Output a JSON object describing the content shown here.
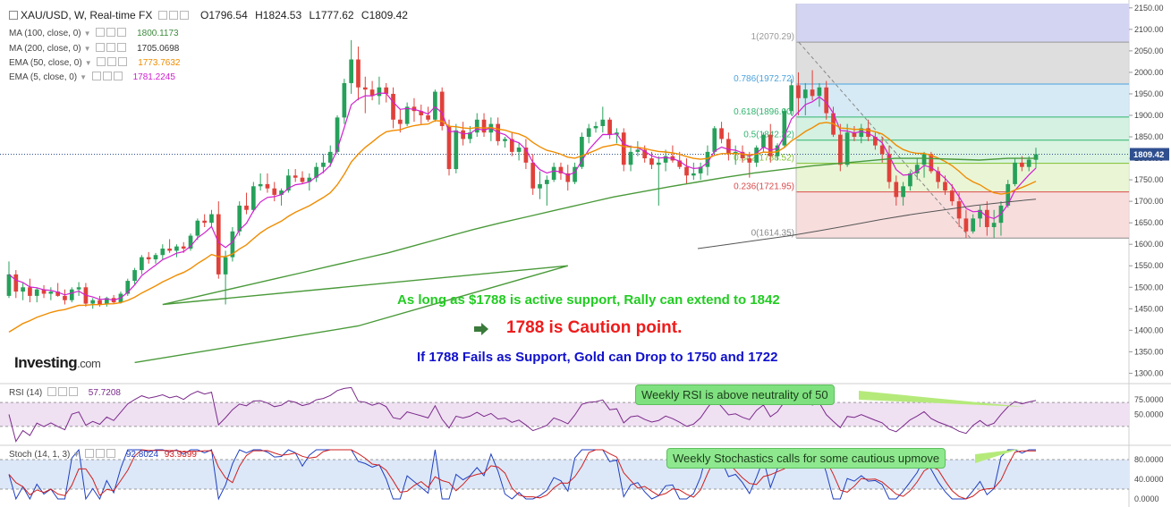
{
  "header": {
    "symbol": "XAU/USD, W, Real-time FX",
    "open": "O1796.54",
    "high": "H1824.53",
    "low": "L1777.62",
    "close": "C1809.42"
  },
  "indicators": [
    {
      "name": "MA (100, close, 0)",
      "value": "1800.1173",
      "color": "#3c8a3c"
    },
    {
      "name": "MA (200, close, 0)",
      "value": "1705.0698",
      "color": "#333333"
    },
    {
      "name": "EMA (50, close, 0)",
      "value": "1773.7632",
      "color": "#f08c00"
    },
    {
      "name": "EMA (5, close, 0)",
      "value": "1781.2245",
      "color": "#d020d0"
    }
  ],
  "rsi_legend": {
    "name": "RSI (14)",
    "value": "57.7208",
    "color": "#7a2a8a"
  },
  "stoch_legend": {
    "name": "Stoch (14, 1, 3)",
    "value_k": "92.8024",
    "value_d": "93.9399",
    "color_k": "#1f3fbf",
    "color_d": "#d02020"
  },
  "brand": {
    "name": "Investing",
    "suffix": ".com"
  },
  "annotations": {
    "line1": "As long as $1788 is active support, Rally can extend to 1842",
    "line2": "1788 is Caution point.",
    "line3": "If 1788 Fails as Support, Gold can Drop to 1750 and 1722",
    "callout_rsi": "Weekly RSI is above neutrality of 50",
    "callout_stoch": "Weekly Stochastics calls for some cautious upmove"
  },
  "colors": {
    "up_candle": "#26a05a",
    "down_candle": "#e0413a",
    "price_tag_bg": "#2f4f8f",
    "rsi_band": "#efe0f2",
    "stoch_band": "#dce8f8"
  },
  "chart_data": {
    "type": "candlestick",
    "title": "XAU/USD, W, Real-time FX",
    "price_axis": {
      "ticks": [
        2150,
        2100,
        2050,
        2000,
        1950,
        1900,
        1850,
        1800,
        1750,
        1700,
        1650,
        1600,
        1550,
        1500,
        1450,
        1400,
        1350,
        1300
      ],
      "tick_labels": [
        "2150.00",
        "2100.00",
        "2050.00",
        "2000.00",
        "1950.00",
        "1900.00",
        "1850.00",
        "1800.00",
        "1750.00",
        "1700.00",
        "1650.00",
        "1600.00",
        "1550.00",
        "1500.00",
        "1450.00",
        "1400.00",
        "1350.00",
        "1300.00"
      ],
      "range": [
        1278,
        2160
      ],
      "last_price_label": "1809.42",
      "last_price": 1809.42
    },
    "fibonacci": {
      "levels": [
        {
          "ratio": "1",
          "price": 2070.29,
          "label": "1(2070.29)",
          "color": "#d8d8d8"
        },
        {
          "ratio": "0.786",
          "price": 1972.72,
          "label": "0.786(1972.72)",
          "color": "#cfe6f3"
        },
        {
          "ratio": "0.618",
          "price": 1896.0,
          "label": "0.618(1896.00)",
          "color": "#cdeedd"
        },
        {
          "ratio": "0.5",
          "price": 1842.32,
          "label": "0.5(1842.32)",
          "color": "#d4f2dc"
        },
        {
          "ratio": "0.382",
          "price": 1788.52,
          "label": "0.382(1788.52)",
          "color": "#e6f3cf"
        },
        {
          "ratio": "0.236",
          "price": 1721.95,
          "label": "0.236(1721.95)",
          "color": "#f7d7d7"
        },
        {
          "ratio": "0",
          "price": 1614.35,
          "label": "0(1614.35)",
          "color": "#999999"
        }
      ],
      "top_band_color": "#d3d3f2"
    },
    "candles": [
      {
        "o": 1480,
        "h": 1560,
        "l": 1475,
        "c": 1530
      },
      {
        "o": 1530,
        "h": 1540,
        "l": 1475,
        "c": 1490
      },
      {
        "o": 1490,
        "h": 1510,
        "l": 1470,
        "c": 1500
      },
      {
        "o": 1500,
        "h": 1520,
        "l": 1465,
        "c": 1480
      },
      {
        "o": 1480,
        "h": 1500,
        "l": 1465,
        "c": 1495
      },
      {
        "o": 1495,
        "h": 1505,
        "l": 1475,
        "c": 1485
      },
      {
        "o": 1485,
        "h": 1500,
        "l": 1470,
        "c": 1490
      },
      {
        "o": 1490,
        "h": 1510,
        "l": 1478,
        "c": 1480
      },
      {
        "o": 1480,
        "h": 1495,
        "l": 1460,
        "c": 1470
      },
      {
        "o": 1470,
        "h": 1500,
        "l": 1465,
        "c": 1495
      },
      {
        "o": 1495,
        "h": 1512,
        "l": 1480,
        "c": 1500
      },
      {
        "o": 1500,
        "h": 1510,
        "l": 1455,
        "c": 1462
      },
      {
        "o": 1462,
        "h": 1475,
        "l": 1450,
        "c": 1470
      },
      {
        "o": 1470,
        "h": 1480,
        "l": 1455,
        "c": 1460
      },
      {
        "o": 1460,
        "h": 1478,
        "l": 1455,
        "c": 1475
      },
      {
        "o": 1475,
        "h": 1482,
        "l": 1462,
        "c": 1465
      },
      {
        "o": 1465,
        "h": 1490,
        "l": 1462,
        "c": 1485
      },
      {
        "o": 1485,
        "h": 1520,
        "l": 1480,
        "c": 1515
      },
      {
        "o": 1515,
        "h": 1545,
        "l": 1505,
        "c": 1540
      },
      {
        "o": 1540,
        "h": 1575,
        "l": 1530,
        "c": 1570
      },
      {
        "o": 1570,
        "h": 1582,
        "l": 1555,
        "c": 1565
      },
      {
        "o": 1565,
        "h": 1580,
        "l": 1555,
        "c": 1575
      },
      {
        "o": 1575,
        "h": 1600,
        "l": 1565,
        "c": 1590
      },
      {
        "o": 1590,
        "h": 1612,
        "l": 1580,
        "c": 1585
      },
      {
        "o": 1585,
        "h": 1600,
        "l": 1570,
        "c": 1595
      },
      {
        "o": 1595,
        "h": 1605,
        "l": 1580,
        "c": 1590
      },
      {
        "o": 1590,
        "h": 1625,
        "l": 1585,
        "c": 1620
      },
      {
        "o": 1620,
        "h": 1660,
        "l": 1610,
        "c": 1655
      },
      {
        "o": 1655,
        "h": 1670,
        "l": 1640,
        "c": 1650
      },
      {
        "o": 1650,
        "h": 1680,
        "l": 1640,
        "c": 1670
      },
      {
        "o": 1670,
        "h": 1700,
        "l": 1520,
        "c": 1530
      },
      {
        "o": 1530,
        "h": 1585,
        "l": 1460,
        "c": 1570
      },
      {
        "o": 1570,
        "h": 1640,
        "l": 1560,
        "c": 1630
      },
      {
        "o": 1630,
        "h": 1700,
        "l": 1620,
        "c": 1690
      },
      {
        "o": 1690,
        "h": 1720,
        "l": 1670,
        "c": 1680
      },
      {
        "o": 1680,
        "h": 1745,
        "l": 1675,
        "c": 1735
      },
      {
        "o": 1735,
        "h": 1765,
        "l": 1725,
        "c": 1740
      },
      {
        "o": 1740,
        "h": 1765,
        "l": 1720,
        "c": 1730
      },
      {
        "o": 1730,
        "h": 1745,
        "l": 1700,
        "c": 1715
      },
      {
        "o": 1715,
        "h": 1730,
        "l": 1690,
        "c": 1725
      },
      {
        "o": 1725,
        "h": 1775,
        "l": 1720,
        "c": 1760
      },
      {
        "o": 1760,
        "h": 1775,
        "l": 1745,
        "c": 1755
      },
      {
        "o": 1755,
        "h": 1770,
        "l": 1740,
        "c": 1745
      },
      {
        "o": 1745,
        "h": 1765,
        "l": 1725,
        "c": 1755
      },
      {
        "o": 1755,
        "h": 1790,
        "l": 1745,
        "c": 1780
      },
      {
        "o": 1780,
        "h": 1810,
        "l": 1765,
        "c": 1790
      },
      {
        "o": 1790,
        "h": 1830,
        "l": 1780,
        "c": 1815
      },
      {
        "o": 1815,
        "h": 1900,
        "l": 1810,
        "c": 1895
      },
      {
        "o": 1895,
        "h": 1985,
        "l": 1880,
        "c": 1975
      },
      {
        "o": 1975,
        "h": 2075,
        "l": 1950,
        "c": 2030
      },
      {
        "o": 2030,
        "h": 2060,
        "l": 1935,
        "c": 1965
      },
      {
        "o": 1965,
        "h": 1990,
        "l": 1905,
        "c": 1960
      },
      {
        "o": 1960,
        "h": 1980,
        "l": 1935,
        "c": 1945
      },
      {
        "o": 1945,
        "h": 1990,
        "l": 1925,
        "c": 1965
      },
      {
        "o": 1965,
        "h": 1975,
        "l": 1930,
        "c": 1950
      },
      {
        "o": 1950,
        "h": 1965,
        "l": 1870,
        "c": 1890
      },
      {
        "o": 1890,
        "h": 1915,
        "l": 1860,
        "c": 1880
      },
      {
        "o": 1880,
        "h": 1930,
        "l": 1875,
        "c": 1920
      },
      {
        "o": 1920,
        "h": 1940,
        "l": 1885,
        "c": 1910
      },
      {
        "o": 1910,
        "h": 1925,
        "l": 1880,
        "c": 1900
      },
      {
        "o": 1900,
        "h": 1920,
        "l": 1885,
        "c": 1890
      },
      {
        "o": 1890,
        "h": 1960,
        "l": 1885,
        "c": 1955
      },
      {
        "o": 1955,
        "h": 1965,
        "l": 1865,
        "c": 1875
      },
      {
        "o": 1875,
        "h": 1890,
        "l": 1760,
        "c": 1775
      },
      {
        "o": 1775,
        "h": 1880,
        "l": 1765,
        "c": 1865
      },
      {
        "o": 1865,
        "h": 1885,
        "l": 1830,
        "c": 1845
      },
      {
        "o": 1845,
        "h": 1875,
        "l": 1835,
        "c": 1860
      },
      {
        "o": 1860,
        "h": 1905,
        "l": 1850,
        "c": 1890
      },
      {
        "o": 1890,
        "h": 1905,
        "l": 1850,
        "c": 1860
      },
      {
        "o": 1860,
        "h": 1895,
        "l": 1840,
        "c": 1880
      },
      {
        "o": 1880,
        "h": 1895,
        "l": 1830,
        "c": 1840
      },
      {
        "o": 1840,
        "h": 1850,
        "l": 1825,
        "c": 1845
      },
      {
        "o": 1845,
        "h": 1860,
        "l": 1805,
        "c": 1815
      },
      {
        "o": 1815,
        "h": 1835,
        "l": 1795,
        "c": 1825
      },
      {
        "o": 1825,
        "h": 1845,
        "l": 1775,
        "c": 1790
      },
      {
        "o": 1790,
        "h": 1810,
        "l": 1715,
        "c": 1730
      },
      {
        "o": 1730,
        "h": 1770,
        "l": 1705,
        "c": 1740
      },
      {
        "o": 1740,
        "h": 1760,
        "l": 1690,
        "c": 1750
      },
      {
        "o": 1750,
        "h": 1790,
        "l": 1745,
        "c": 1780
      },
      {
        "o": 1780,
        "h": 1790,
        "l": 1750,
        "c": 1765
      },
      {
        "o": 1765,
        "h": 1785,
        "l": 1725,
        "c": 1745
      },
      {
        "o": 1745,
        "h": 1790,
        "l": 1740,
        "c": 1780
      },
      {
        "o": 1780,
        "h": 1860,
        "l": 1775,
        "c": 1850
      },
      {
        "o": 1850,
        "h": 1880,
        "l": 1835,
        "c": 1870
      },
      {
        "o": 1870,
        "h": 1885,
        "l": 1860,
        "c": 1875
      },
      {
        "o": 1875,
        "h": 1920,
        "l": 1860,
        "c": 1890
      },
      {
        "o": 1890,
        "h": 1895,
        "l": 1845,
        "c": 1855
      },
      {
        "o": 1855,
        "h": 1870,
        "l": 1835,
        "c": 1860
      },
      {
        "o": 1860,
        "h": 1870,
        "l": 1770,
        "c": 1785
      },
      {
        "o": 1785,
        "h": 1830,
        "l": 1770,
        "c": 1815
      },
      {
        "o": 1815,
        "h": 1840,
        "l": 1805,
        "c": 1820
      },
      {
        "o": 1820,
        "h": 1830,
        "l": 1790,
        "c": 1800
      },
      {
        "o": 1800,
        "h": 1815,
        "l": 1775,
        "c": 1785
      },
      {
        "o": 1785,
        "h": 1805,
        "l": 1690,
        "c": 1790
      },
      {
        "o": 1790,
        "h": 1820,
        "l": 1770,
        "c": 1805
      },
      {
        "o": 1805,
        "h": 1830,
        "l": 1790,
        "c": 1795
      },
      {
        "o": 1795,
        "h": 1815,
        "l": 1775,
        "c": 1780
      },
      {
        "o": 1780,
        "h": 1800,
        "l": 1740,
        "c": 1760
      },
      {
        "o": 1760,
        "h": 1790,
        "l": 1750,
        "c": 1765
      },
      {
        "o": 1765,
        "h": 1790,
        "l": 1750,
        "c": 1780
      },
      {
        "o": 1780,
        "h": 1830,
        "l": 1760,
        "c": 1815
      },
      {
        "o": 1815,
        "h": 1875,
        "l": 1810,
        "c": 1870
      },
      {
        "o": 1870,
        "h": 1885,
        "l": 1835,
        "c": 1845
      },
      {
        "o": 1845,
        "h": 1860,
        "l": 1795,
        "c": 1810
      },
      {
        "o": 1810,
        "h": 1830,
        "l": 1785,
        "c": 1815
      },
      {
        "o": 1815,
        "h": 1830,
        "l": 1790,
        "c": 1800
      },
      {
        "o": 1800,
        "h": 1815,
        "l": 1755,
        "c": 1790
      },
      {
        "o": 1790,
        "h": 1830,
        "l": 1780,
        "c": 1825
      },
      {
        "o": 1825,
        "h": 1860,
        "l": 1815,
        "c": 1855
      },
      {
        "o": 1855,
        "h": 1880,
        "l": 1790,
        "c": 1805
      },
      {
        "o": 1805,
        "h": 1835,
        "l": 1795,
        "c": 1830
      },
      {
        "o": 1830,
        "h": 1915,
        "l": 1825,
        "c": 1910
      },
      {
        "o": 1910,
        "h": 1985,
        "l": 1900,
        "c": 1970
      },
      {
        "o": 1970,
        "h": 2000,
        "l": 1900,
        "c": 1940
      },
      {
        "o": 1940,
        "h": 1975,
        "l": 1900,
        "c": 1960
      },
      {
        "o": 1960,
        "h": 2005,
        "l": 1935,
        "c": 1945
      },
      {
        "o": 1945,
        "h": 1975,
        "l": 1920,
        "c": 1965
      },
      {
        "o": 1965,
        "h": 1980,
        "l": 1890,
        "c": 1905
      },
      {
        "o": 1905,
        "h": 1920,
        "l": 1850,
        "c": 1855
      },
      {
        "o": 1855,
        "h": 1880,
        "l": 1770,
        "c": 1785
      },
      {
        "o": 1785,
        "h": 1880,
        "l": 1780,
        "c": 1860
      },
      {
        "o": 1860,
        "h": 1875,
        "l": 1840,
        "c": 1850
      },
      {
        "o": 1850,
        "h": 1880,
        "l": 1835,
        "c": 1870
      },
      {
        "o": 1870,
        "h": 1890,
        "l": 1840,
        "c": 1850
      },
      {
        "o": 1850,
        "h": 1860,
        "l": 1820,
        "c": 1830
      },
      {
        "o": 1830,
        "h": 1850,
        "l": 1790,
        "c": 1810
      },
      {
        "o": 1810,
        "h": 1830,
        "l": 1730,
        "c": 1745
      },
      {
        "o": 1745,
        "h": 1760,
        "l": 1690,
        "c": 1710
      },
      {
        "o": 1710,
        "h": 1745,
        "l": 1690,
        "c": 1735
      },
      {
        "o": 1735,
        "h": 1770,
        "l": 1725,
        "c": 1765
      },
      {
        "o": 1765,
        "h": 1800,
        "l": 1750,
        "c": 1785
      },
      {
        "o": 1785,
        "h": 1815,
        "l": 1755,
        "c": 1810
      },
      {
        "o": 1810,
        "h": 1815,
        "l": 1765,
        "c": 1770
      },
      {
        "o": 1770,
        "h": 1780,
        "l": 1730,
        "c": 1745
      },
      {
        "o": 1745,
        "h": 1760,
        "l": 1715,
        "c": 1725
      },
      {
        "o": 1725,
        "h": 1740,
        "l": 1690,
        "c": 1700
      },
      {
        "o": 1700,
        "h": 1720,
        "l": 1640,
        "c": 1660
      },
      {
        "o": 1660,
        "h": 1680,
        "l": 1615,
        "c": 1630
      },
      {
        "o": 1630,
        "h": 1670,
        "l": 1625,
        "c": 1660
      },
      {
        "o": 1660,
        "h": 1690,
        "l": 1640,
        "c": 1680
      },
      {
        "o": 1680,
        "h": 1700,
        "l": 1620,
        "c": 1640
      },
      {
        "o": 1640,
        "h": 1680,
        "l": 1615,
        "c": 1650
      },
      {
        "o": 1650,
        "h": 1700,
        "l": 1620,
        "c": 1690
      },
      {
        "o": 1690,
        "h": 1750,
        "l": 1685,
        "c": 1740
      },
      {
        "o": 1740,
        "h": 1800,
        "l": 1735,
        "c": 1790
      },
      {
        "o": 1790,
        "h": 1805,
        "l": 1770,
        "c": 1780
      },
      {
        "o": 1780,
        "h": 1805,
        "l": 1770,
        "c": 1797
      },
      {
        "o": 1796.54,
        "h": 1824.53,
        "l": 1777.62,
        "c": 1809.42
      }
    ],
    "ma100": [
      1460,
      1475,
      1490,
      1505,
      1520,
      1535,
      1550,
      1565,
      1580,
      1598,
      1616,
      1634,
      1650,
      1665,
      1680,
      1695,
      1710,
      1722,
      1734,
      1745,
      1756,
      1766,
      1774,
      1782,
      1788,
      1794,
      1800,
      1800,
      1798,
      1796,
      1800,
      1800
    ],
    "ma200": [
      1590,
      1600,
      1610,
      1620,
      1632,
      1645,
      1658,
      1670,
      1680,
      1690,
      1698,
      1705
    ],
    "rsi": {
      "range": [
        0,
        100
      ],
      "ticks": [
        75,
        50
      ],
      "tick_labels": [
        "75.0000",
        "50.0000"
      ],
      "band": [
        30,
        70
      ],
      "last": 57.7208
    },
    "stoch": {
      "range": [
        0,
        100
      ],
      "ticks": [
        80,
        40,
        0
      ],
      "tick_labels": [
        "80.0000",
        "40.0000",
        "0.0000"
      ],
      "band": [
        20,
        80
      ],
      "last_k": 92.8024,
      "last_d": 93.9399
    }
  }
}
